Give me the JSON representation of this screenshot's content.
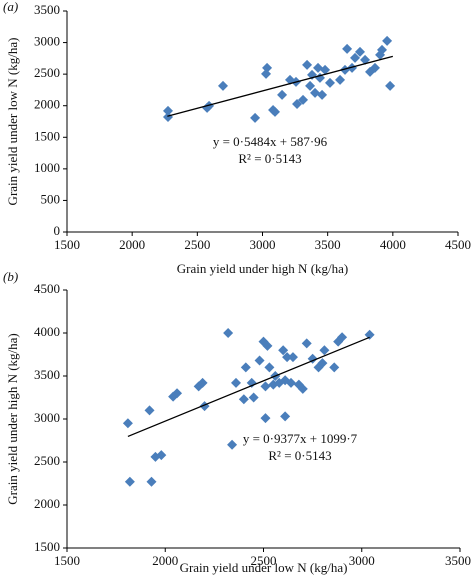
{
  "chart_data": [
    {
      "type": "scatter",
      "panel_label": "(a)",
      "x_label": "Grain yield under high N (kg/ha)",
      "y_label": "Grain yield under low N (kg/ha)",
      "equation": "y = 0·5484x + 587·96",
      "r_squared": "R² = 0·5143",
      "color": "#4a7ebb",
      "xlim": [
        1500,
        4500
      ],
      "ylim": [
        0,
        3500
      ],
      "xticks": [
        1500,
        2000,
        2500,
        3000,
        3500,
        4000,
        4500
      ],
      "yticks": [
        0,
        500,
        1000,
        1500,
        2000,
        2500,
        3000,
        3500
      ],
      "x": [
        2275,
        2275,
        2575,
        2590,
        2697,
        2943,
        3027,
        3035,
        3081,
        3096,
        3150,
        3211,
        3257,
        3265,
        3311,
        3342,
        3365,
        3380,
        3403,
        3426,
        3441,
        3457,
        3480,
        3518,
        3595,
        3633,
        3649,
        3687,
        3710,
        3748,
        3787,
        3825,
        3863,
        3902,
        3917,
        3956,
        3979
      ],
      "values": [
        1822,
        1918,
        1965,
        1997,
        2314,
        1807,
        2504,
        2599,
        1933,
        1902,
        2171,
        2409,
        2377,
        2028,
        2092,
        2647,
        2314,
        2488,
        2203,
        2599,
        2441,
        2171,
        2567,
        2361,
        2409,
        2567,
        2900,
        2599,
        2758,
        2853,
        2726,
        2536,
        2599,
        2805,
        2884,
        3027,
        2314
      ],
      "trendline": {
        "x": [
          2270,
          4000
        ],
        "values": [
          1833,
          2782
        ]
      }
    },
    {
      "type": "scatter",
      "panel_label": "(b)",
      "x_label": "Grain yield under low N (kg/ha)",
      "y_label": "Grain yield under high N (kg/ha)",
      "equation": "y = 0·9377x + 1099·7",
      "r_squared": "R² = 0·5143",
      "color": "#4a7ebb",
      "xlim": [
        1500,
        3500
      ],
      "ylim": [
        1500,
        4500
      ],
      "xticks": [
        1500,
        2000,
        2500,
        3000,
        3500
      ],
      "yticks": [
        1500,
        2000,
        2500,
        3000,
        3500,
        4000,
        4500
      ],
      "x": [
        1810,
        1820,
        1920,
        1930,
        1950,
        1980,
        2040,
        2060,
        2170,
        2190,
        2200,
        2320,
        2340,
        2360,
        2400,
        2410,
        2440,
        2450,
        2480,
        2500,
        2510,
        2510,
        2520,
        2530,
        2550,
        2560,
        2580,
        2600,
        2610,
        2610,
        2620,
        2640,
        2650,
        2680,
        2700,
        2720,
        2750,
        2780,
        2800,
        2810,
        2860,
        2880,
        2900,
        3040
      ],
      "values": [
        2950,
        2270,
        3100,
        2270,
        2560,
        2580,
        3260,
        3300,
        3380,
        3420,
        3150,
        4000,
        2700,
        3420,
        3230,
        3600,
        3420,
        3250,
        3680,
        3900,
        3010,
        3380,
        3850,
        3600,
        3400,
        3500,
        3420,
        3800,
        3030,
        3450,
        3720,
        3420,
        3720,
        3400,
        3350,
        3880,
        3700,
        3600,
        3650,
        3800,
        3600,
        3900,
        3950,
        3980
      ],
      "trendline": {
        "x": [
          1810,
          3040
        ],
        "values": [
          2797,
          3950
        ]
      }
    }
  ]
}
